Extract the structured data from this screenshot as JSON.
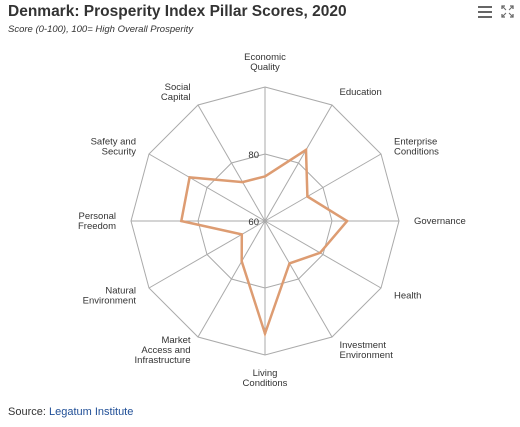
{
  "title": "Denmark: Prosperity Index Pillar Scores, 2020",
  "subtitle": "Score (0-100), 100= High Overall Prosperity",
  "menu_icon": "hamburger-menu-icon",
  "expand_icon": "expand-icon",
  "source": {
    "prefix": "Source: ",
    "link_text": "Legatum Institute"
  },
  "colors": {
    "series": "#dd9c72",
    "grid": "#aaaaaa",
    "text": "#333333",
    "link": "#1f4e96"
  },
  "chart_data": {
    "type": "radar",
    "title": "Denmark: Prosperity Index Pillar Scores, 2020",
    "subtitle": "Score (0-100), 100= High Overall Prosperity",
    "categories": [
      "Economic Quality",
      "Education",
      "Enterprise Conditions",
      "Governance",
      "Health",
      "Investment Environment",
      "Living Conditions",
      "Market Access and Infrastructure",
      "Natural Environment",
      "Personal Freedom",
      "Safety and Security",
      "Social Capital"
    ],
    "category_labels": [
      [
        "Economic",
        "Quality"
      ],
      [
        "Education"
      ],
      [
        "Enterprise",
        "Conditions"
      ],
      [
        "Governance"
      ],
      [
        "Health"
      ],
      [
        "Investment",
        "Environment"
      ],
      [
        "Living",
        "Conditions"
      ],
      [
        "Market",
        "Access and",
        "Infrastructure"
      ],
      [
        "Natural",
        "Environment"
      ],
      [
        "Personal",
        "Freedom"
      ],
      [
        "Safety and",
        "Security"
      ],
      [
        "Social",
        "Capital"
      ]
    ],
    "series": [
      {
        "values": [
          73.3,
          84.5,
          74.6,
          84.5,
          79.0,
          74.6,
          93.6,
          73.9,
          68.0,
          85.0,
          86.0,
          73.4
        ]
      }
    ],
    "rlim": [
      60,
      100
    ],
    "tick_values": [
      60,
      80
    ],
    "tick_labels": [
      "60",
      "80"
    ],
    "grid_levels": [
      60,
      80,
      100
    ],
    "grid": true,
    "legend": false
  }
}
